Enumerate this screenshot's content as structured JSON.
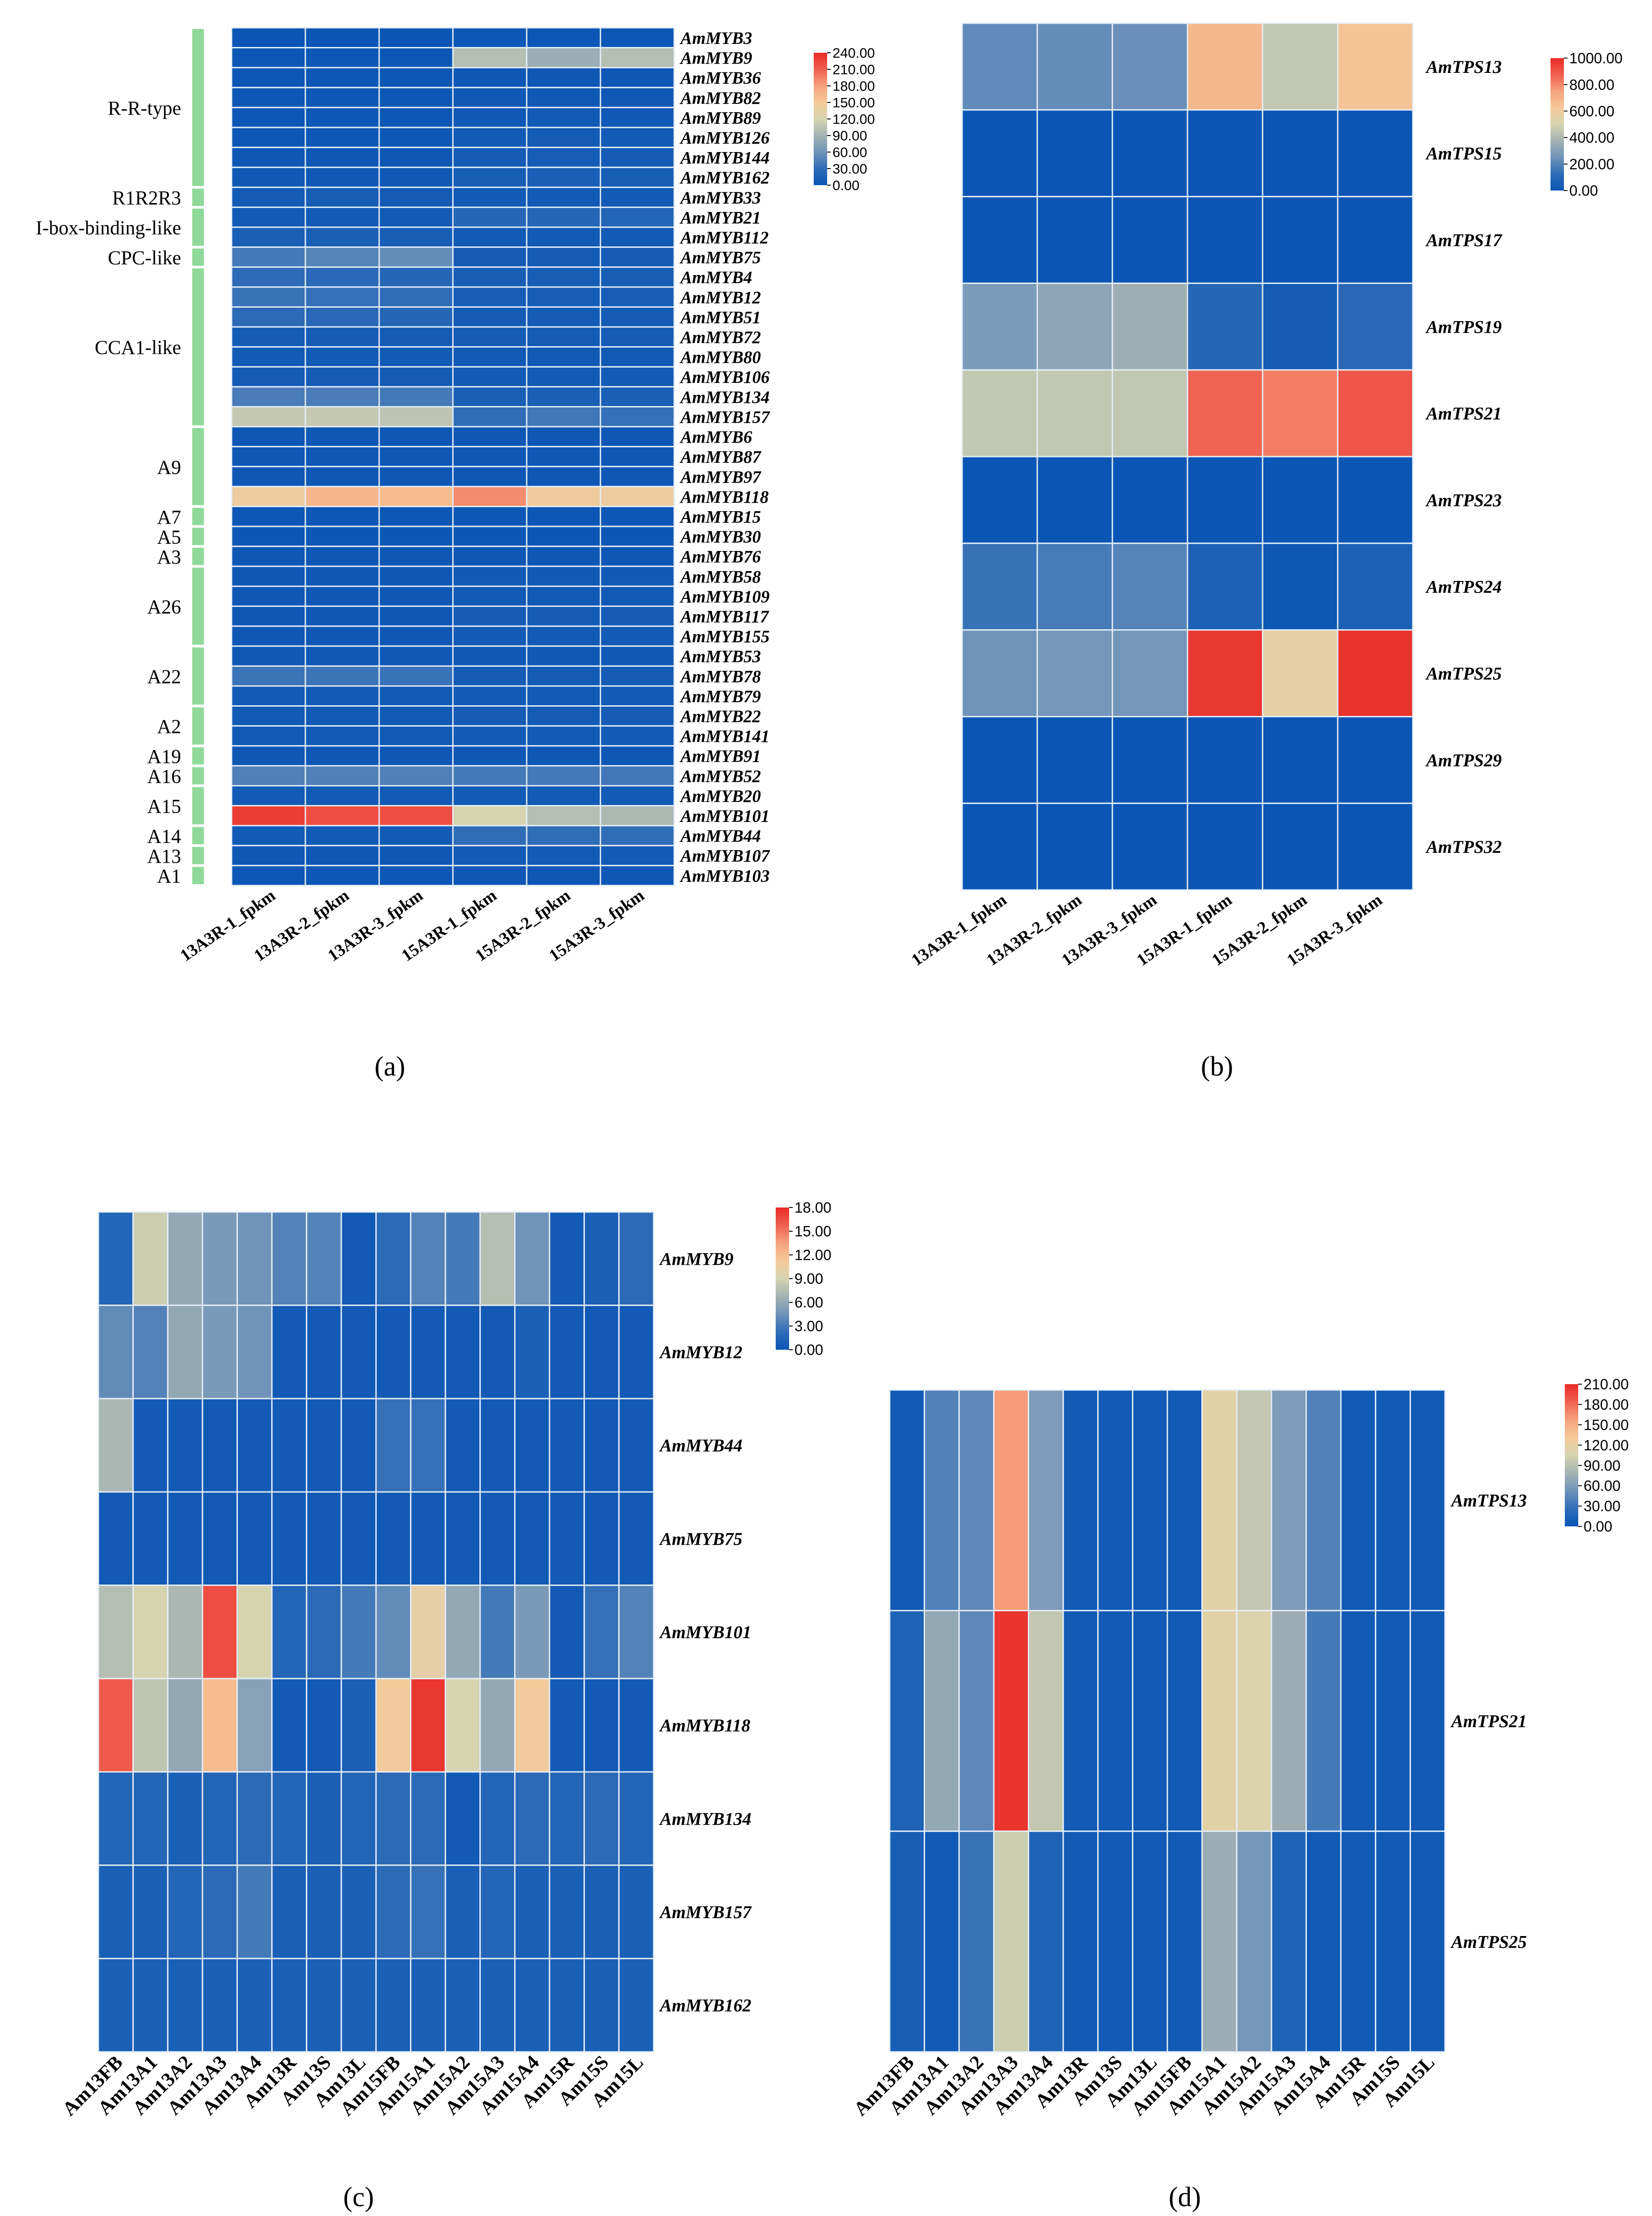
{
  "figure": {
    "panel_letters": [
      "(a)",
      "(b)",
      "(c)",
      "(d)"
    ]
  },
  "colors": {
    "scale": [
      "#0a55b5",
      "#2f6db7",
      "#6f93b9",
      "#a4b3b3",
      "#d6d4b0",
      "#f5c999",
      "#f6a27c",
      "#f16050",
      "#e82b26"
    ]
  },
  "chart_data": [
    {
      "panel": "(a)",
      "type": "heatmap",
      "columns": [
        "13A3R-1_fpkm",
        "13A3R-2_fpkm",
        "13A3R-3_fpkm",
        "15A3R-1_fpkm",
        "15A3R-2_fpkm",
        "15A3R-3_fpkm"
      ],
      "rows": [
        "AmMYB3",
        "AmMYB9",
        "AmMYB36",
        "AmMYB82",
        "AmMYB89",
        "AmMYB126",
        "AmMYB144",
        "AmMYB162",
        "AmMYB33",
        "AmMYB21",
        "AmMYB112",
        "AmMYB75",
        "AmMYB4",
        "AmMYB12",
        "AmMYB51",
        "AmMYB72",
        "AmMYB80",
        "AmMYB106",
        "AmMYB134",
        "AmMYB157",
        "AmMYB6",
        "AmMYB87",
        "AmMYB97",
        "AmMYB118",
        "AmMYB15",
        "AmMYB30",
        "AmMYB76",
        "AmMYB58",
        "AmMYB109",
        "AmMYB117",
        "AmMYB155",
        "AmMYB53",
        "AmMYB78",
        "AmMYB79",
        "AmMYB22",
        "AmMYB141",
        "AmMYB91",
        "AmMYB52",
        "AmMYB20",
        "AmMYB101",
        "AmMYB44",
        "AmMYB107",
        "AmMYB103"
      ],
      "values": [
        [
          1,
          1,
          1,
          2,
          2,
          2
        ],
        [
          2,
          2,
          2,
          100,
          85,
          100
        ],
        [
          2,
          2,
          2,
          3,
          3,
          3
        ],
        [
          2,
          2,
          2,
          4,
          4,
          4
        ],
        [
          2,
          2,
          2,
          4,
          5,
          4
        ],
        [
          2,
          2,
          2,
          6,
          7,
          6
        ],
        [
          3,
          3,
          3,
          8,
          9,
          8
        ],
        [
          4,
          4,
          4,
          10,
          12,
          10
        ],
        [
          8,
          10,
          8,
          6,
          6,
          6
        ],
        [
          6,
          6,
          6,
          22,
          22,
          20
        ],
        [
          12,
          12,
          10,
          6,
          6,
          6
        ],
        [
          40,
          48,
          55,
          8,
          8,
          8
        ],
        [
          28,
          25,
          22,
          10,
          10,
          10
        ],
        [
          34,
          32,
          30,
          9,
          9,
          9
        ],
        [
          26,
          24,
          22,
          8,
          8,
          8
        ],
        [
          8,
          8,
          8,
          7,
          7,
          7
        ],
        [
          6,
          6,
          6,
          5,
          5,
          5
        ],
        [
          8,
          8,
          8,
          6,
          6,
          6
        ],
        [
          42,
          42,
          40,
          12,
          12,
          12
        ],
        [
          110,
          110,
          105,
          30,
          38,
          32
        ],
        [
          3,
          3,
          3,
          3,
          3,
          3
        ],
        [
          3,
          3,
          3,
          3,
          3,
          3
        ],
        [
          3,
          3,
          3,
          3,
          3,
          3
        ],
        [
          140,
          165,
          160,
          190,
          145,
          140
        ],
        [
          2,
          2,
          2,
          2,
          2,
          2
        ],
        [
          2,
          2,
          2,
          2,
          2,
          2
        ],
        [
          3,
          3,
          3,
          3,
          3,
          3
        ],
        [
          3,
          3,
          3,
          5,
          5,
          5
        ],
        [
          3,
          3,
          3,
          5,
          5,
          5
        ],
        [
          3,
          3,
          3,
          8,
          8,
          8
        ],
        [
          3,
          3,
          3,
          6,
          6,
          6
        ],
        [
          4,
          4,
          4,
          4,
          4,
          4
        ],
        [
          36,
          36,
          34,
          8,
          8,
          8
        ],
        [
          6,
          6,
          6,
          6,
          6,
          6
        ],
        [
          6,
          6,
          6,
          8,
          8,
          8
        ],
        [
          5,
          5,
          5,
          6,
          6,
          6
        ],
        [
          3,
          3,
          3,
          3,
          3,
          3
        ],
        [
          45,
          45,
          45,
          40,
          40,
          38
        ],
        [
          6,
          6,
          6,
          6,
          6,
          6
        ],
        [
          230,
          220,
          220,
          120,
          100,
          95
        ],
        [
          6,
          6,
          6,
          30,
          30,
          30
        ],
        [
          3,
          3,
          3,
          6,
          6,
          6
        ],
        [
          2,
          2,
          2,
          3,
          3,
          3
        ]
      ],
      "row_groups": [
        {
          "label": "R-R-type",
          "start": 0,
          "end": 7
        },
        {
          "label": "R1R2R3",
          "start": 8,
          "end": 8
        },
        {
          "label": "I-box-binding-like",
          "start": 9,
          "end": 10
        },
        {
          "label": "CPC-like",
          "start": 11,
          "end": 11
        },
        {
          "label": "CCA1-like",
          "start": 12,
          "end": 19
        },
        {
          "label": "A9",
          "start": 20,
          "end": 23
        },
        {
          "label": "A7",
          "start": 24,
          "end": 24
        },
        {
          "label": "A5",
          "start": 25,
          "end": 25
        },
        {
          "label": "A3",
          "start": 26,
          "end": 26
        },
        {
          "label": "A26",
          "start": 27,
          "end": 30
        },
        {
          "label": "A22",
          "start": 31,
          "end": 33
        },
        {
          "label": "A2",
          "start": 34,
          "end": 35
        },
        {
          "label": "A19",
          "start": 36,
          "end": 36
        },
        {
          "label": "A16",
          "start": 37,
          "end": 37
        },
        {
          "label": "A15",
          "start": 38,
          "end": 39
        },
        {
          "label": "A14",
          "start": 40,
          "end": 40
        },
        {
          "label": "A13",
          "start": 41,
          "end": 41
        },
        {
          "label": "A1",
          "start": 42,
          "end": 42
        }
      ],
      "legend_ticks": [
        "240.00",
        "210.00",
        "180.00",
        "150.00",
        "120.00",
        "90.00",
        "60.00",
        "30.00",
        "0.00"
      ],
      "range": [
        0,
        240
      ]
    },
    {
      "panel": "(b)",
      "type": "heatmap",
      "columns": [
        "13A3R-1_fpkm",
        "13A3R-2_fpkm",
        "13A3R-3_fpkm",
        "15A3R-1_fpkm",
        "15A3R-2_fpkm",
        "15A3R-3_fpkm"
      ],
      "rows": [
        "AmTPS13",
        "AmTPS15",
        "AmTPS17",
        "AmTPS19",
        "AmTPS21",
        "AmTPS23",
        "AmTPS24",
        "AmTPS25",
        "AmTPS29",
        "AmTPS32"
      ],
      "values": [
        [
          220,
          230,
          240,
          680,
          450,
          640
        ],
        [
          5,
          5,
          5,
          5,
          5,
          5
        ],
        [
          5,
          5,
          5,
          5,
          5,
          5
        ],
        [
          280,
          320,
          360,
          90,
          30,
          100
        ],
        [
          450,
          450,
          450,
          870,
          820,
          900
        ],
        [
          5,
          5,
          5,
          5,
          5,
          5
        ],
        [
          140,
          170,
          200,
          60,
          10,
          60
        ],
        [
          250,
          260,
          260,
          970,
          560,
          980
        ],
        [
          5,
          5,
          5,
          5,
          5,
          5
        ],
        [
          5,
          5,
          5,
          5,
          5,
          5
        ]
      ],
      "legend_ticks": [
        "1000.00",
        "800.00",
        "600.00",
        "400.00",
        "200.00",
        "0.00"
      ],
      "range": [
        0,
        1000
      ]
    },
    {
      "panel": "(c)",
      "type": "heatmap",
      "columns": [
        "Am13FB",
        "Am13A1",
        "Am13A2",
        "Am13A3",
        "Am13A4",
        "Am13R",
        "Am13S",
        "Am13L",
        "Am15FB",
        "Am15A1",
        "Am15A2",
        "Am15A3",
        "Am15A4",
        "Am15R",
        "Am15S",
        "Am15L"
      ],
      "rows": [
        "AmMYB9",
        "AmMYB12",
        "AmMYB44",
        "AmMYB75",
        "AmMYB101",
        "AmMYB118",
        "AmMYB134",
        "AmMYB157",
        "AmMYB162"
      ],
      "values": [
        [
          1.5,
          8.5,
          6.0,
          5.0,
          4.5,
          3.5,
          3.5,
          0.5,
          2.0,
          3.5,
          3.0,
          7.5,
          4.5,
          0.5,
          1.0,
          2.0
        ],
        [
          4.0,
          3.5,
          6.0,
          5.0,
          4.5,
          0.5,
          0.5,
          0.5,
          0.5,
          0.5,
          0.5,
          0.5,
          1.0,
          0.5,
          0.5,
          0.5
        ],
        [
          7.0,
          0.5,
          0.5,
          0.5,
          0.5,
          0.5,
          0.5,
          0.5,
          2.5,
          2.5,
          0.5,
          0.5,
          0.5,
          0.5,
          0.5,
          0.5
        ],
        [
          0.5,
          0.5,
          0.5,
          0.5,
          0.5,
          0.5,
          0.5,
          0.5,
          0.5,
          0.5,
          0.5,
          0.5,
          0.5,
          0.5,
          0.5,
          0.5
        ],
        [
          7.5,
          9.0,
          7.0,
          16.5,
          9.0,
          1.5,
          2.0,
          3.0,
          4.0,
          10.0,
          6.0,
          3.0,
          5.0,
          0.5,
          2.5,
          3.5
        ],
        [
          16.0,
          8.0,
          6.0,
          12.0,
          5.5,
          0.5,
          0.5,
          1.0,
          11.0,
          17.5,
          9.0,
          6.0,
          11.0,
          0.5,
          0.5,
          0.5
        ],
        [
          1.5,
          1.5,
          1.0,
          1.5,
          2.0,
          1.5,
          1.0,
          1.5,
          2.0,
          2.0,
          0.5,
          1.5,
          2.0,
          1.5,
          2.0,
          1.5
        ],
        [
          1.0,
          1.0,
          1.5,
          2.0,
          3.0,
          1.0,
          1.0,
          1.0,
          2.0,
          2.5,
          1.0,
          1.5,
          1.0,
          1.0,
          1.0,
          1.0
        ],
        [
          1.0,
          1.0,
          1.0,
          1.0,
          1.0,
          1.0,
          1.0,
          1.0,
          1.0,
          1.0,
          1.0,
          1.0,
          1.0,
          1.0,
          1.0,
          1.0
        ]
      ],
      "legend_ticks": [
        "18.00",
        "15.00",
        "12.00",
        "9.00",
        "6.00",
        "3.00",
        "0.00"
      ],
      "range": [
        0,
        18
      ]
    },
    {
      "panel": "(d)",
      "type": "heatmap",
      "columns": [
        "Am13FB",
        "Am13A1",
        "Am13A2",
        "Am13A3",
        "Am13A4",
        "Am13R",
        "Am13S",
        "Am13L",
        "Am15FB",
        "Am15A1",
        "Am15A2",
        "Am15A3",
        "Am15A4",
        "Am15R",
        "Am15S",
        "Am15L"
      ],
      "rows": [
        "AmTPS13",
        "AmTPS21",
        "AmTPS25"
      ],
      "values": [
        [
          5,
          40,
          45,
          160,
          60,
          5,
          5,
          5,
          5,
          115,
          95,
          60,
          40,
          5,
          5,
          5
        ],
        [
          15,
          70,
          45,
          205,
          95,
          5,
          5,
          5,
          5,
          115,
          110,
          75,
          35,
          5,
          5,
          5
        ],
        [
          10,
          5,
          30,
          100,
          15,
          5,
          5,
          5,
          5,
          75,
          55,
          15,
          5,
          5,
          5,
          5
        ]
      ],
      "legend_ticks": [
        "210.00",
        "180.00",
        "150.00",
        "120.00",
        "90.00",
        "60.00",
        "30.00",
        "0.00"
      ],
      "range": [
        0,
        210
      ]
    }
  ]
}
